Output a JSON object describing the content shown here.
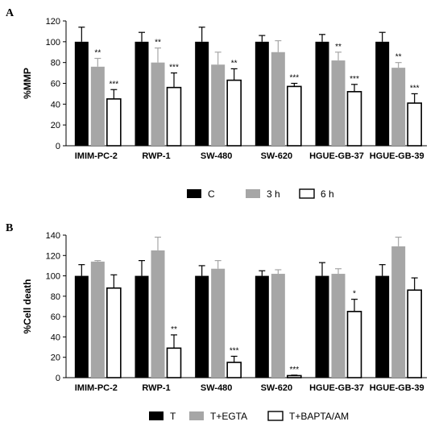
{
  "chart_data": [
    {
      "type": "bar",
      "panel_letter": "A",
      "ylabel": "%MMP",
      "ylim": [
        0,
        120
      ],
      "yticks": [
        0,
        20,
        40,
        60,
        80,
        100,
        120
      ],
      "categories": [
        "IMIM-PC-2",
        "RWP-1",
        "SW-480",
        "SW-620",
        "HGUE-GB-37",
        "HGUE-GB-39"
      ],
      "series": [
        {
          "name": "C",
          "color": "#000000",
          "fill": "#000000",
          "values": [
            100,
            100,
            100,
            100,
            100,
            100
          ],
          "errors": [
            14,
            9,
            14,
            6,
            7,
            9
          ],
          "significance": [
            "",
            "",
            "",
            "",
            "",
            ""
          ]
        },
        {
          "name": "3 h",
          "color": "#a6a6a6",
          "fill": "#a6a6a6",
          "values": [
            76,
            80,
            78,
            90,
            82,
            75
          ],
          "errors": [
            8,
            14,
            12,
            11,
            8,
            5
          ],
          "significance": [
            "**",
            "**",
            "",
            "",
            "**",
            "**"
          ]
        },
        {
          "name": "6 h",
          "color": "#000000",
          "fill": "#ffffff",
          "values": [
            45,
            56,
            63,
            57,
            52,
            41
          ],
          "errors": [
            9,
            14,
            11,
            3,
            7,
            9
          ],
          "significance": [
            "***",
            "***",
            "**",
            "***",
            "***",
            "***"
          ]
        }
      ],
      "legend_position": "bottom"
    },
    {
      "type": "bar",
      "panel_letter": "B",
      "ylabel": "%Cell death",
      "ylim": [
        0,
        140
      ],
      "yticks": [
        0,
        20,
        40,
        60,
        80,
        100,
        120,
        140
      ],
      "categories": [
        "IMIM-PC-2",
        "RWP-1",
        "SW-480",
        "SW-620",
        "HGUE-GB-37",
        "HGUE-GB-39"
      ],
      "series": [
        {
          "name": "T",
          "color": "#000000",
          "fill": "#000000",
          "values": [
            100,
            100,
            100,
            100,
            100,
            100
          ],
          "errors": [
            11,
            15,
            10,
            5,
            13,
            11
          ],
          "significance": [
            "",
            "",
            "",
            "",
            "",
            ""
          ]
        },
        {
          "name": "T+EGTA",
          "color": "#a6a6a6",
          "fill": "#a6a6a6",
          "values": [
            114,
            125,
            107,
            102,
            102,
            129
          ],
          "errors": [
            1,
            13,
            8,
            4,
            5,
            9
          ],
          "significance": [
            "",
            "",
            "",
            "",
            "",
            ""
          ]
        },
        {
          "name": "T+BAPTA/AM",
          "color": "#000000",
          "fill": "#ffffff",
          "values": [
            88,
            29,
            15,
            2,
            65,
            86
          ],
          "errors": [
            13,
            13,
            6,
            0.5,
            12,
            12
          ],
          "significance": [
            "",
            "**",
            "***",
            "***",
            "*",
            ""
          ]
        }
      ],
      "legend_position": "bottom"
    }
  ]
}
